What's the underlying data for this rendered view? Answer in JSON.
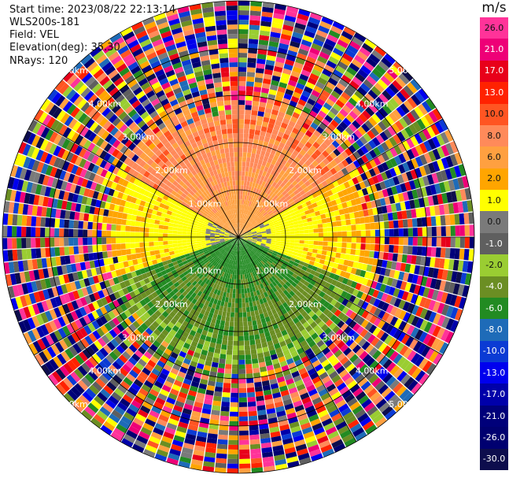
{
  "header": {
    "start_time": "Start time: 2023/08/22 22:13:14",
    "instrument": "WLS200s-181",
    "field": "Field: VEL",
    "elevation": "Elevation(deg): 35.30",
    "nrays": "NRays: 120"
  },
  "chart_data": {
    "type": "ppi_polar_heatmap",
    "field": "VEL",
    "units_label": "m/s",
    "elevation_deg": 35.3,
    "n_rays": 120,
    "range_rings_km": [
      1.0,
      2.0,
      3.0,
      4.0,
      5.0
    ],
    "ring_labels": [
      "1.00km",
      "2.00km",
      "3.00km",
      "4.00km",
      "5.00km"
    ],
    "spokes_deg": [
      0,
      30,
      60,
      90,
      120,
      150,
      180,
      210,
      240,
      270,
      300,
      330
    ],
    "colorbar": {
      "ticks": [
        "26.0",
        "21.0",
        "17.0",
        "13.0",
        "10.0",
        "8.0",
        "6.0",
        "2.0",
        "1.0",
        "0.0",
        "-1.0",
        "-2.0",
        "-4.0",
        "-6.0",
        "-8.0",
        "-10.0",
        "-13.0",
        "-17.0",
        "-21.0",
        "-26.0",
        "-30.0"
      ],
      "values": [
        26,
        21,
        17,
        13,
        10,
        8,
        6,
        2,
        1,
        0,
        -1,
        -2,
        -4,
        -6,
        -8,
        -10,
        -13,
        -17,
        -21,
        -26,
        -30
      ],
      "colors": [
        "#ff3399",
        "#ee0077",
        "#e8001a",
        "#ff2200",
        "#ff5522",
        "#ff8a5a",
        "#ffa040",
        "#ffa500",
        "#ffff00",
        "#7a7a7a",
        "#5f5f5f",
        "#9acd32",
        "#6b8e23",
        "#228b22",
        "#1e6bb8",
        "#0b3bd4",
        "#0000ee",
        "#0000aa",
        "#00007a",
        "#000070",
        "#0d0d4d"
      ]
    },
    "pattern": {
      "near_range_km": 2.5,
      "description_by_azimuth": [
        {
          "from_deg": 300,
          "to_deg": 60,
          "velocity_ms": [
            6,
            10
          ],
          "sense": "receding"
        },
        {
          "from_deg": 60,
          "to_deg": 110,
          "velocity_ms": [
            1,
            2
          ],
          "sense": "receding"
        },
        {
          "from_deg": 250,
          "to_deg": 300,
          "velocity_ms": [
            1,
            2
          ],
          "sense": "receding"
        },
        {
          "from_deg": 110,
          "to_deg": 250,
          "velocity_ms": [
            -6,
            -2
          ],
          "sense": "approaching"
        }
      ],
      "outer_range_noise": true
    }
  }
}
